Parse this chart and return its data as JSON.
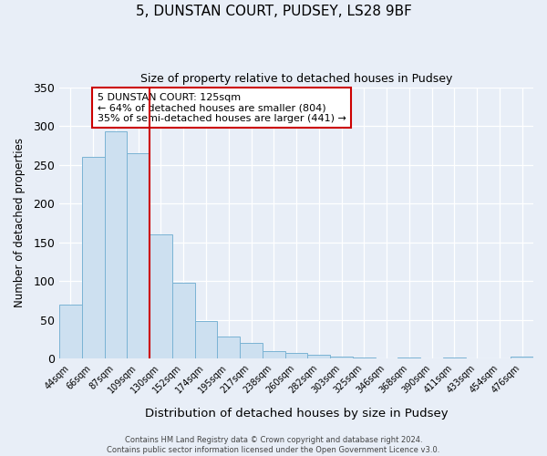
{
  "title": "5, DUNSTAN COURT, PUDSEY, LS28 9BF",
  "subtitle": "Size of property relative to detached houses in Pudsey",
  "xlabel": "Distribution of detached houses by size in Pudsey",
  "ylabel": "Number of detached properties",
  "bin_labels": [
    "44sqm",
    "66sqm",
    "87sqm",
    "109sqm",
    "130sqm",
    "152sqm",
    "174sqm",
    "195sqm",
    "217sqm",
    "238sqm",
    "260sqm",
    "282sqm",
    "303sqm",
    "325sqm",
    "346sqm",
    "368sqm",
    "390sqm",
    "411sqm",
    "433sqm",
    "454sqm",
    "476sqm"
  ],
  "bin_values": [
    70,
    260,
    293,
    265,
    160,
    98,
    49,
    29,
    20,
    10,
    8,
    5,
    3,
    1,
    0,
    2,
    0,
    2,
    0,
    0,
    3
  ],
  "bar_color": "#cde0f0",
  "bar_edge_color": "#7ab3d4",
  "vline_color": "#cc0000",
  "vline_x_idx": 4,
  "ylim": [
    0,
    350
  ],
  "yticks": [
    0,
    50,
    100,
    150,
    200,
    250,
    300,
    350
  ],
  "annotation_title": "5 DUNSTAN COURT: 125sqm",
  "annotation_line1": "← 64% of detached houses are smaller (804)",
  "annotation_line2": "35% of semi-detached houses are larger (441) →",
  "annotation_box_color": "#ffffff",
  "annotation_box_edge": "#cc0000",
  "footer1": "Contains HM Land Registry data © Crown copyright and database right 2024.",
  "footer2": "Contains public sector information licensed under the Open Government Licence v3.0.",
  "fig_bg_color": "#e8eef7",
  "plot_bg_color": "#e8eef7",
  "grid_color": "#ffffff"
}
